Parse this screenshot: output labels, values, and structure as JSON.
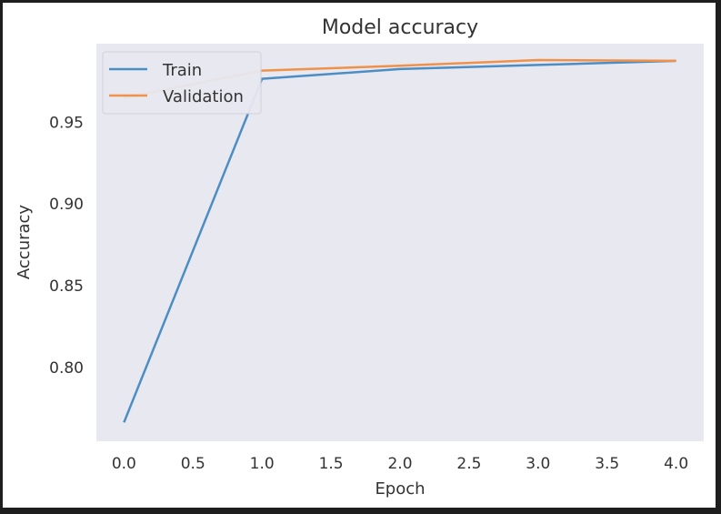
{
  "chart_data": {
    "type": "line",
    "title": "Model accuracy",
    "xlabel": "Epoch",
    "ylabel": "Accuracy",
    "x": [
      0,
      1,
      2,
      3,
      4
    ],
    "xticks": [
      "0.0",
      "0.5",
      "1.0",
      "1.5",
      "2.0",
      "2.5",
      "3.0",
      "3.5",
      "4.0"
    ],
    "yticks": [
      "0.80",
      "0.85",
      "0.90",
      "0.95"
    ],
    "xlim": [
      -0.2,
      4.2
    ],
    "ylim": [
      0.755,
      0.998
    ],
    "grid": false,
    "legend": "upper left",
    "series": [
      {
        "name": "Train",
        "color": "#4c8dc4",
        "values": [
          0.7665,
          0.9765,
          0.9825,
          0.985,
          0.9875
        ]
      },
      {
        "name": "Validation",
        "color": "#f0914a",
        "values": [
          0.965,
          0.9815,
          0.9845,
          0.988,
          0.9875
        ]
      }
    ]
  },
  "colors": {
    "plot_background": "#e8e8f0",
    "page_background": "#ffffff"
  }
}
